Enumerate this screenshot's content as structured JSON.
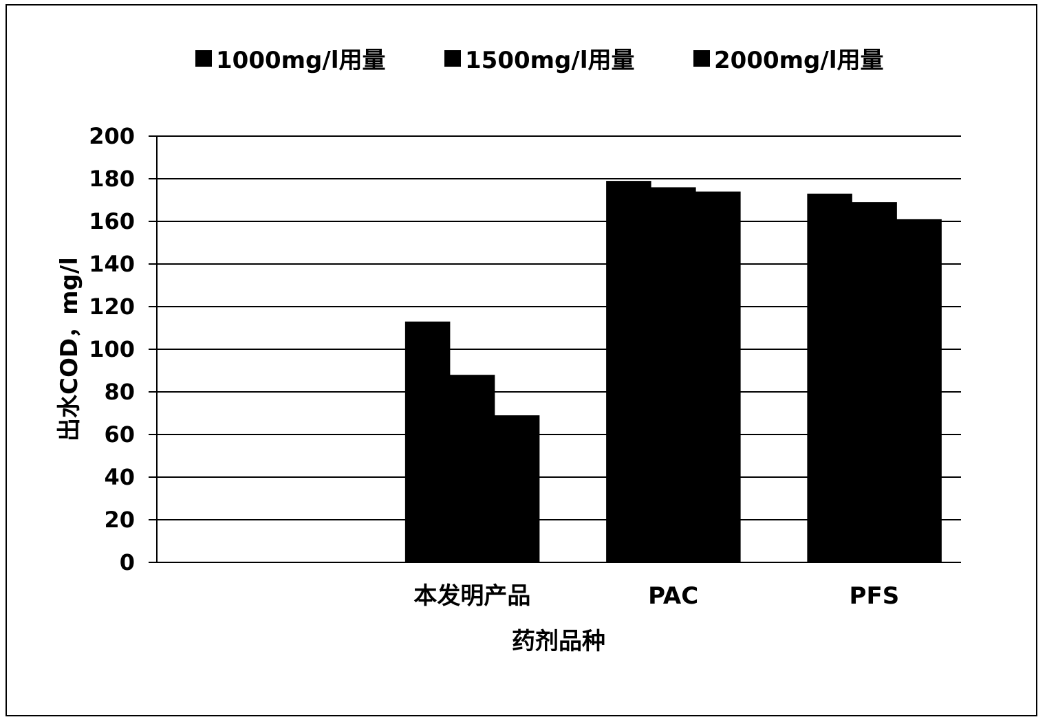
{
  "chart_data": {
    "type": "bar",
    "title": "",
    "xlabel": "药剂品种",
    "ylabel": "出水COD，mg/l",
    "ylim": [
      0,
      200
    ],
    "yticks": [
      0,
      20,
      40,
      60,
      80,
      100,
      120,
      140,
      160,
      180,
      200
    ],
    "grid": true,
    "legend_position": "top",
    "categories": [
      "",
      "本发明产品",
      "PAC",
      "PFS"
    ],
    "series": [
      {
        "name": "1000mg/l用量",
        "values": [
          null,
          113,
          179,
          173
        ]
      },
      {
        "name": "1500mg/l用量",
        "values": [
          null,
          88,
          176,
          169
        ]
      },
      {
        "name": "2000mg/l用量",
        "values": [
          null,
          69,
          174,
          161
        ]
      }
    ],
    "colors": {
      "bar": "#000000",
      "grid": "#000000"
    }
  }
}
